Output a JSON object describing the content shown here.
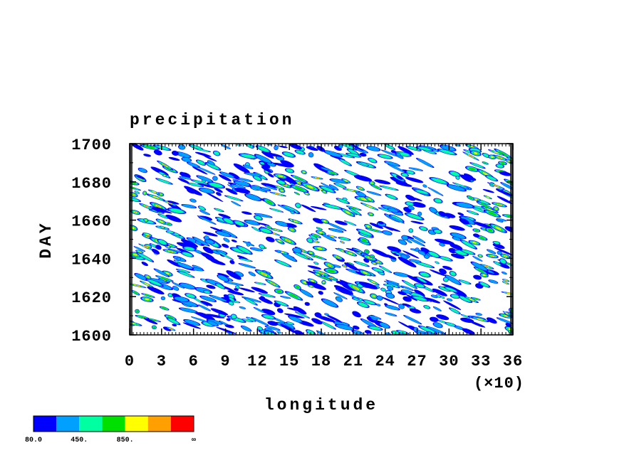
{
  "chart_data": {
    "type": "hovmoller",
    "title": "precipitation",
    "x_label": "longitude",
    "x_multiplier": "(×10)",
    "y_label": "DAY",
    "xlim": [
      0,
      36
    ],
    "xticks": [
      0,
      3,
      6,
      9,
      12,
      15,
      18,
      21,
      24,
      27,
      30,
      33,
      36
    ],
    "ylim": [
      1600,
      1700
    ],
    "yticks": [
      1600,
      1620,
      1640,
      1660,
      1680,
      1700
    ],
    "colorbar": {
      "colors": [
        "#0000ff",
        "#00a0ff",
        "#00ffa0",
        "#00e000",
        "#ffff00",
        "#ffa000",
        "#ff0000"
      ],
      "levels": [
        "80.0",
        null,
        "450.",
        null,
        "850.",
        null,
        null,
        "∞"
      ]
    }
  }
}
